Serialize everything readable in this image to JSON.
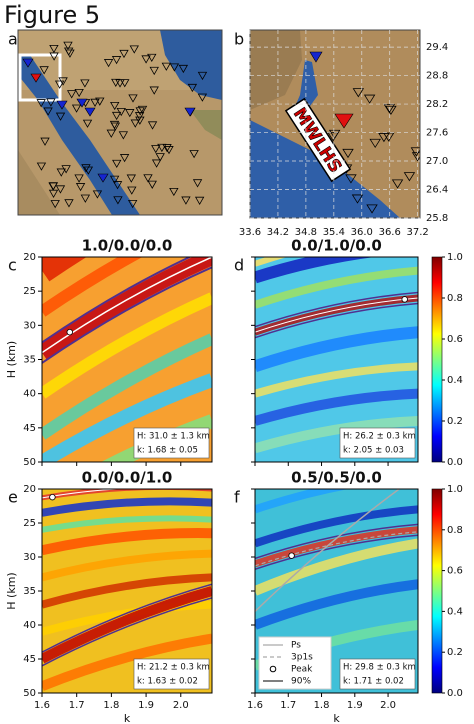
{
  "figure_title": "Figure 5",
  "chart_data": [
    {
      "type": "map",
      "panel_label": "a"
    },
    {
      "type": "map",
      "panel_label": "b",
      "annotation": "MWLHS",
      "xlim": [
        33.6,
        37.25
      ],
      "ylim": [
        25.8,
        29.76
      ],
      "xticks": [
        33.6,
        34.2,
        34.8,
        35.4,
        {
          "value": 36.0,
          "label": "36.0"
        },
        36.6,
        37.2
      ],
      "yticks": [
        25.8,
        26.4,
        {
          "value": 27.0,
          "label": "27.0"
        },
        27.6,
        28.2,
        28.8,
        29.4
      ]
    },
    {
      "type": "heatmap",
      "panel_label": "c",
      "title": "1.0/0.0/0.0",
      "ylabel": "H (km)",
      "xlim": [
        1.6,
        2.09
      ],
      "ylim": [
        20,
        50
      ],
      "xticks": [
        1.6,
        1.7,
        1.8,
        1.9,
        {
          "value": 2.0,
          "label": "2.0"
        }
      ],
      "yticks": [
        20,
        25,
        30,
        35,
        40,
        45,
        50
      ],
      "xtick_labels": false,
      "ytick_labels": true,
      "peak": {
        "k": 1.68,
        "H": 31.0
      },
      "annotation": [
        "H: 31.0 ± 1.3 km",
        "k: 1.68 ± 0.05"
      ]
    },
    {
      "type": "heatmap",
      "panel_label": "d",
      "title": "0.0/1.0/0.0",
      "xlim": [
        1.6,
        2.09
      ],
      "ylim": [
        20,
        50
      ],
      "xticks": [
        1.6,
        1.7,
        1.8,
        1.9,
        {
          "value": 2.0,
          "label": "2.0"
        }
      ],
      "yticks": [
        20,
        25,
        30,
        35,
        40,
        45,
        50
      ],
      "xtick_labels": false,
      "ytick_labels": false,
      "peak": {
        "k": 2.05,
        "H": 26.2
      },
      "annotation": [
        "H: 26.2 ± 0.3 km",
        "k: 2.05 ± 0.03"
      ],
      "colorbar": {
        "lim": [
          0,
          1
        ],
        "ticks": [
          {
            "value": 0,
            "label": "0.0"
          },
          0.2,
          0.4,
          0.6,
          0.8,
          {
            "value": 1,
            "label": "1.0"
          }
        ]
      }
    },
    {
      "type": "heatmap",
      "panel_label": "e",
      "title": "0.0/0.0/1.0",
      "xlabel": "k",
      "ylabel": "H (km)",
      "xlim": [
        1.6,
        2.09
      ],
      "ylim": [
        20,
        50
      ],
      "xticks": [
        1.6,
        1.7,
        1.8,
        1.9,
        {
          "value": 2.0,
          "label": "2.0"
        }
      ],
      "yticks": [
        20,
        25,
        30,
        35,
        40,
        45,
        50
      ],
      "xtick_labels": true,
      "ytick_labels": true,
      "peak": {
        "k": 1.63,
        "H": 21.2
      },
      "annotation": [
        "H: 21.2 ± 0.3 km",
        "k: 1.63 ± 0.02"
      ]
    },
    {
      "type": "heatmap",
      "panel_label": "f",
      "title": "0.5/0.5/0.0",
      "xlabel": "k",
      "xlim": [
        1.6,
        2.09
      ],
      "ylim": [
        20,
        50
      ],
      "xticks": [
        1.6,
        1.7,
        1.8,
        1.9,
        {
          "value": 2.0,
          "label": "2.0"
        }
      ],
      "yticks": [
        20,
        25,
        30,
        35,
        40,
        45,
        50
      ],
      "xtick_labels": true,
      "ytick_labels": false,
      "peak": {
        "k": 1.71,
        "H": 29.8
      },
      "annotation": [
        "H: 29.8 ± 0.3 km",
        "k: 1.71 ± 0.02"
      ],
      "legend": [
        {
          "name": "Ps",
          "color": "#aaaaaa",
          "style": "solid"
        },
        {
          "name": "3p1s",
          "color": "#aaaaaa",
          "style": "dashed"
        },
        {
          "name": "Peak",
          "color": "#000000",
          "style": "circle"
        },
        {
          "name": "90%",
          "color": "#333333",
          "style": "solid"
        }
      ],
      "colorbar": {
        "lim": [
          0,
          1
        ],
        "ticks": [
          {
            "value": 0,
            "label": "0.0"
          },
          0.2,
          0.4,
          0.6,
          0.8,
          {
            "value": 1,
            "label": "1.0"
          }
        ]
      }
    }
  ]
}
